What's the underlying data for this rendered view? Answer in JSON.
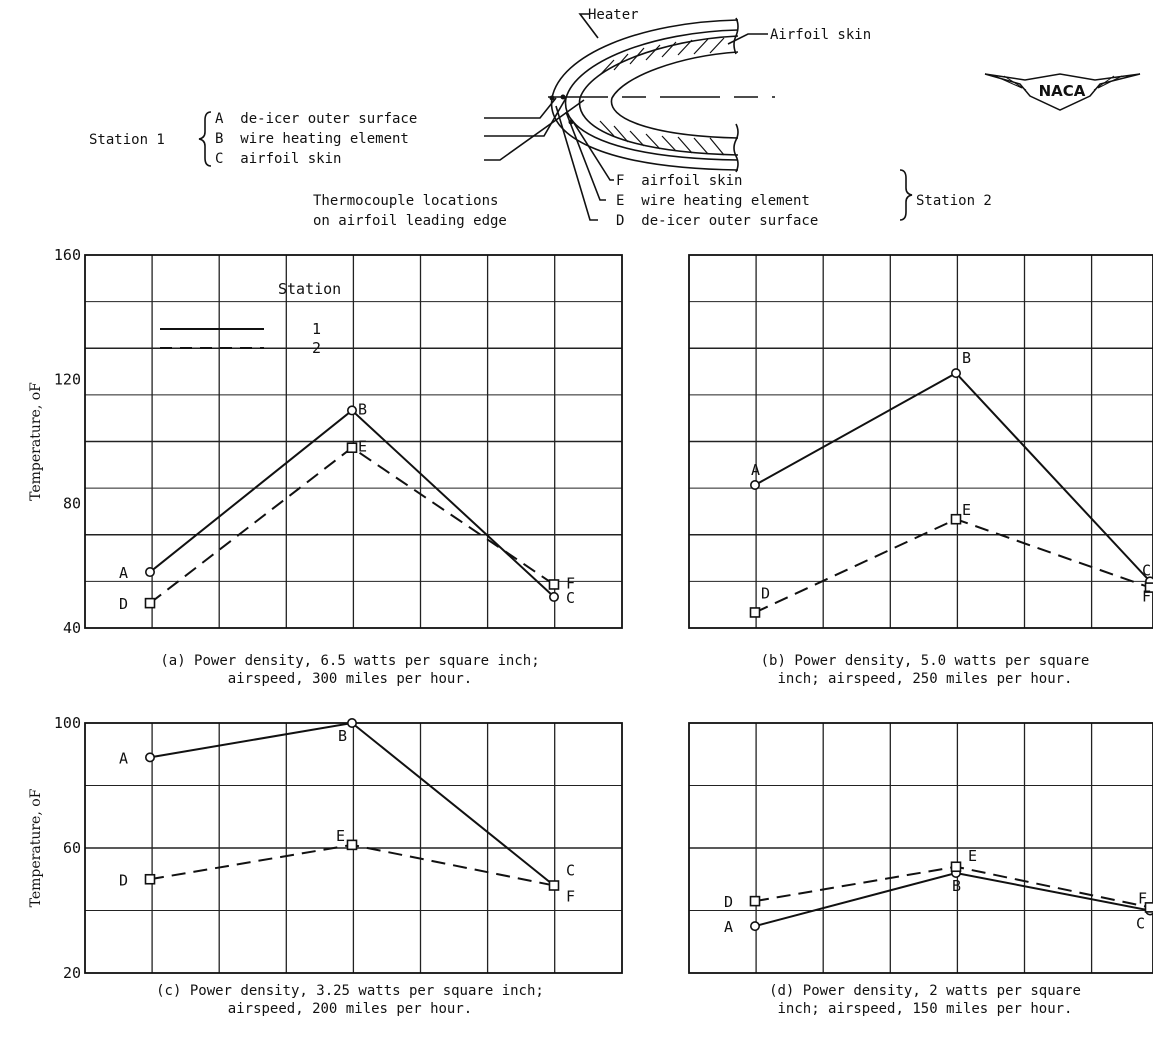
{
  "diagram": {
    "heater_label": "Heater",
    "airfoil_skin_label": "Airfoil skin",
    "logo_text": "NACA",
    "station1_label": "Station 1",
    "station1_items": [
      "A  de-icer outer surface",
      "B  wire heating element",
      "C  airfoil skin"
    ],
    "station2_label": "Station 2",
    "station2_items": [
      "F  airfoil skin",
      "E  wire heating element",
      "D  de-icer outer surface"
    ],
    "caption_line1": "Thermocouple locations",
    "caption_line2": "on airfoil leading edge"
  },
  "legend": {
    "title": "Station",
    "entries": [
      "1",
      "2"
    ]
  },
  "chart_data": [
    {
      "type": "line",
      "panel": "(a)",
      "caption": [
        "(a)  Power density, 6.5 watts per square inch;",
        "airspeed, 300 miles per hour."
      ],
      "ylabel": "Temperature, oF",
      "ylim": [
        40,
        160
      ],
      "yticks": [
        "160",
        "120",
        "80",
        "40"
      ],
      "series": [
        {
          "name": "1",
          "labels": [
            "A",
            "B",
            "C"
          ],
          "values": [
            58,
            110,
            50
          ]
        },
        {
          "name": "2",
          "labels": [
            "D",
            "E",
            "F"
          ],
          "values": [
            48,
            98,
            54
          ]
        }
      ]
    },
    {
      "type": "line",
      "panel": "(b)",
      "caption": [
        "(b)  Power density, 5.0 watts per square",
        "inch; airspeed, 250 miles per hour."
      ],
      "ylim": [
        40,
        160
      ],
      "series": [
        {
          "name": "1",
          "labels": [
            "A",
            "B",
            "C"
          ],
          "values": [
            86,
            122,
            55
          ]
        },
        {
          "name": "2",
          "labels": [
            "D",
            "E",
            "F"
          ],
          "values": [
            45,
            75,
            53
          ]
        }
      ]
    },
    {
      "type": "line",
      "panel": "(c)",
      "caption": [
        "(c)  Power density, 3.25 watts per square inch;",
        "airspeed, 200 miles per hour."
      ],
      "ylabel": "Temperature, oF",
      "ylim": [
        20,
        100
      ],
      "yticks": [
        "100",
        "60",
        "20"
      ],
      "series": [
        {
          "name": "1",
          "labels": [
            "A",
            "B",
            "C"
          ],
          "values": [
            89,
            100,
            48
          ]
        },
        {
          "name": "2",
          "labels": [
            "D",
            "E",
            "F"
          ],
          "values": [
            50,
            61,
            48
          ]
        }
      ]
    },
    {
      "type": "line",
      "panel": "(d)",
      "caption": [
        "(d)  Power density, 2 watts per square",
        "inch; airspeed, 150 miles per hour."
      ],
      "ylim": [
        20,
        100
      ],
      "series": [
        {
          "name": "1",
          "labels": [
            "A",
            "B",
            "C"
          ],
          "values": [
            35,
            52,
            40
          ]
        },
        {
          "name": "2",
          "labels": [
            "D",
            "E",
            "F"
          ],
          "values": [
            43,
            54,
            41
          ]
        }
      ]
    }
  ]
}
